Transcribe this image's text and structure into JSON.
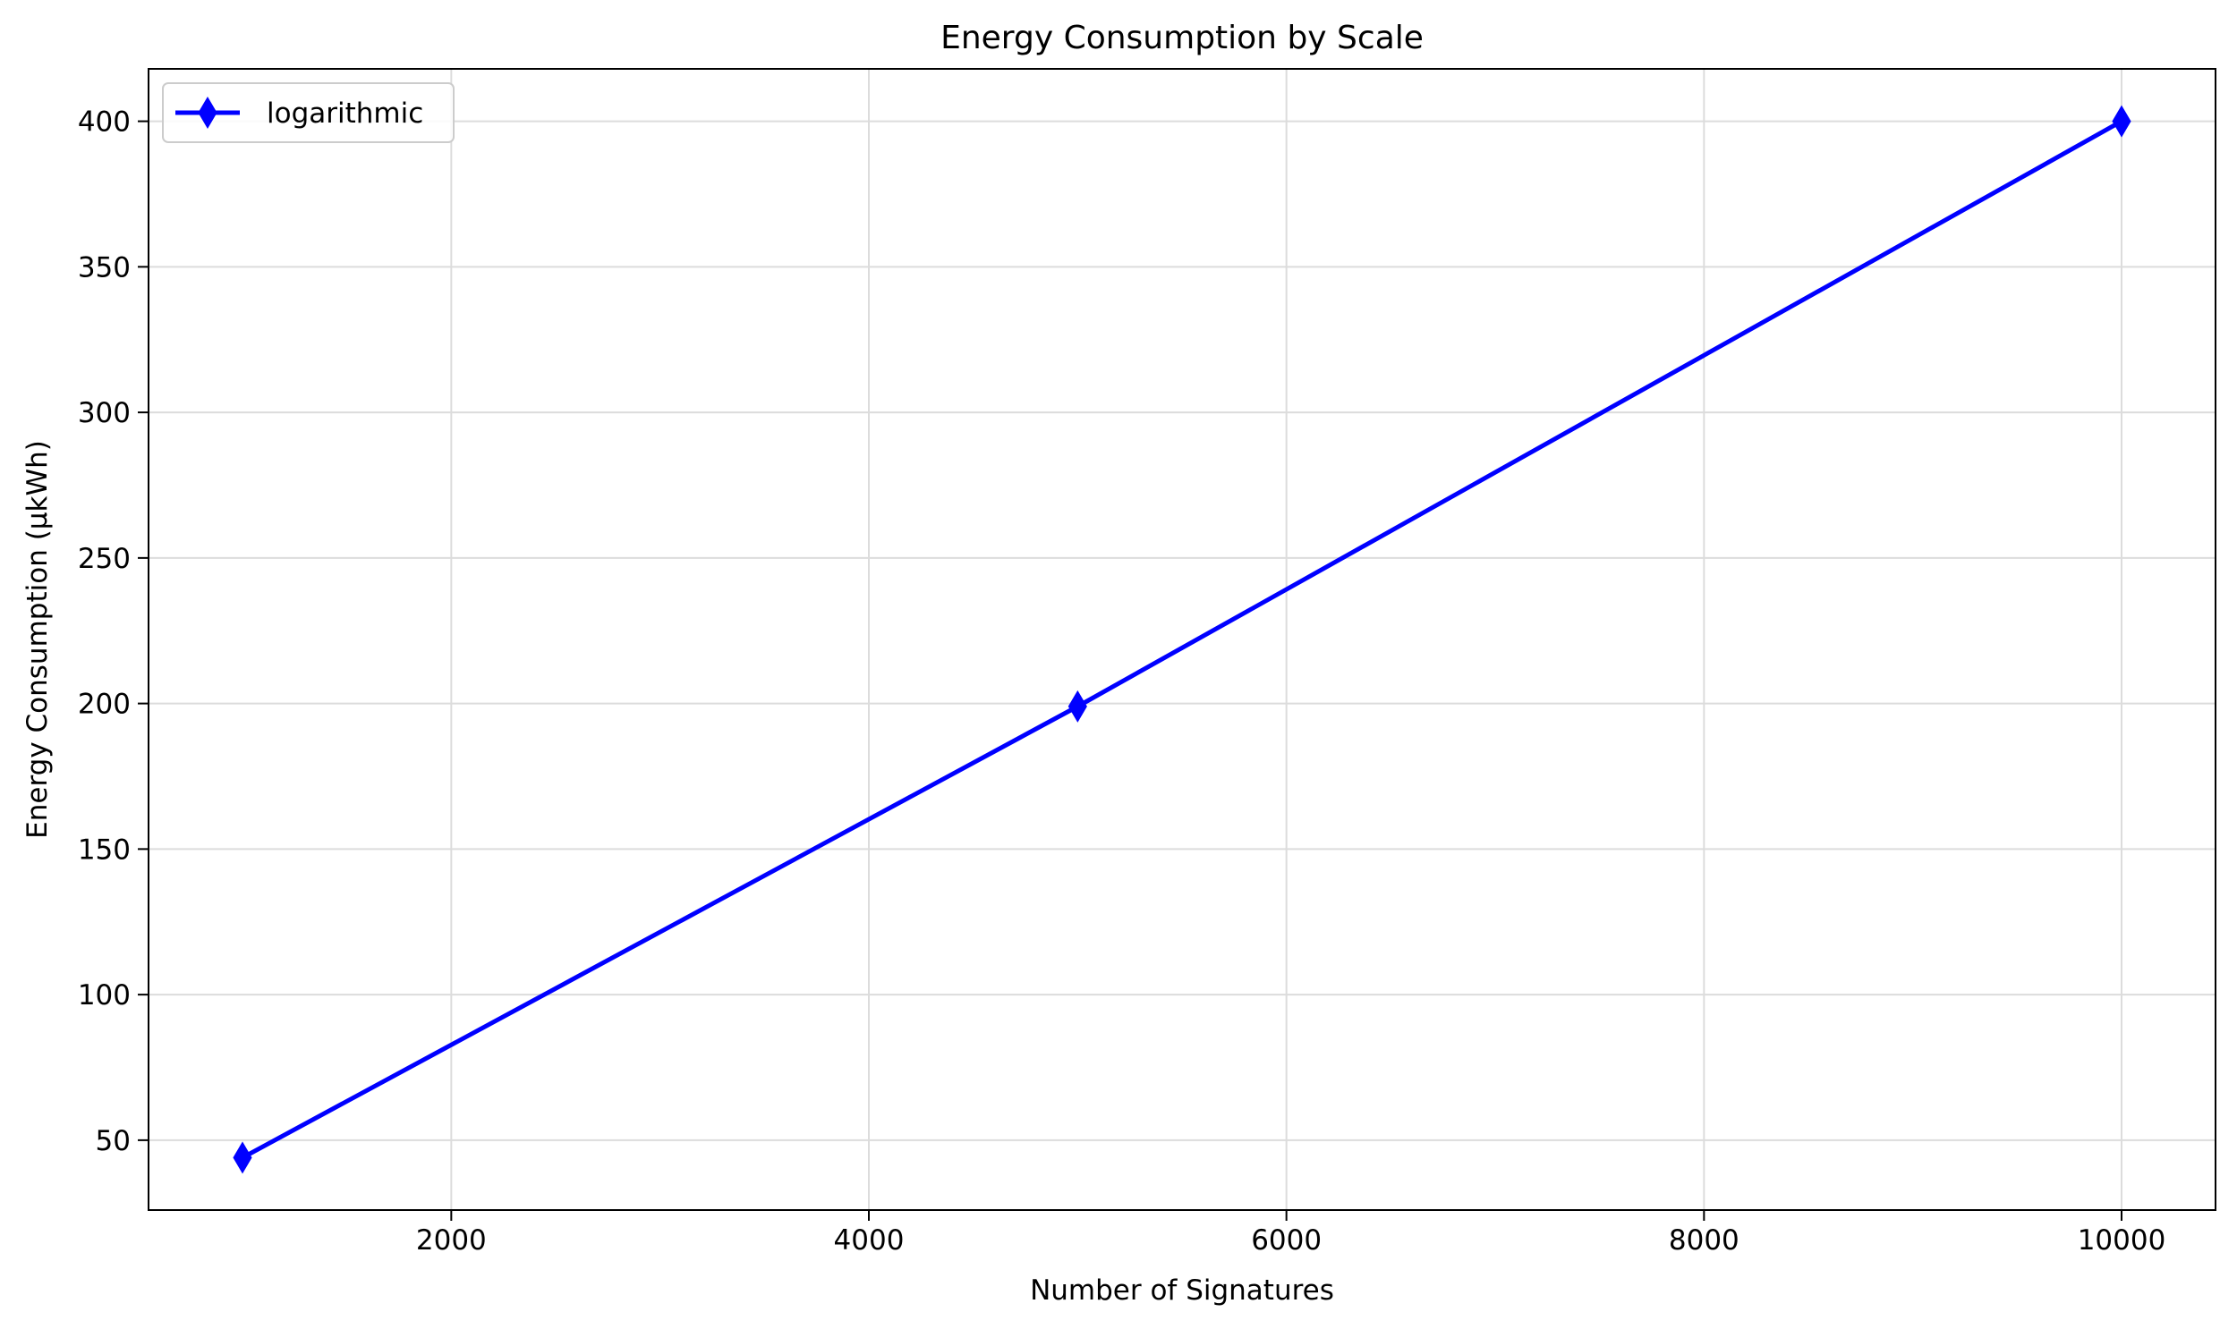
{
  "chart_data": {
    "type": "line",
    "title": "Energy Consumption by Scale",
    "xlabel": "Number of Signatures",
    "ylabel": "Energy Consumption (µkWh)",
    "xlim": [
      550,
      10450
    ],
    "ylim": [
      26,
      418
    ],
    "x_ticks": [
      2000,
      4000,
      6000,
      8000,
      10000
    ],
    "y_ticks": [
      50,
      100,
      150,
      200,
      250,
      300,
      350,
      400
    ],
    "grid": true,
    "legend_position": "top-left",
    "series": [
      {
        "name": "logarithmic",
        "color": "#0000ff",
        "marker": "thin-diamond",
        "x": [
          1000,
          5000,
          10000
        ],
        "y": [
          44,
          199,
          400
        ]
      }
    ]
  }
}
